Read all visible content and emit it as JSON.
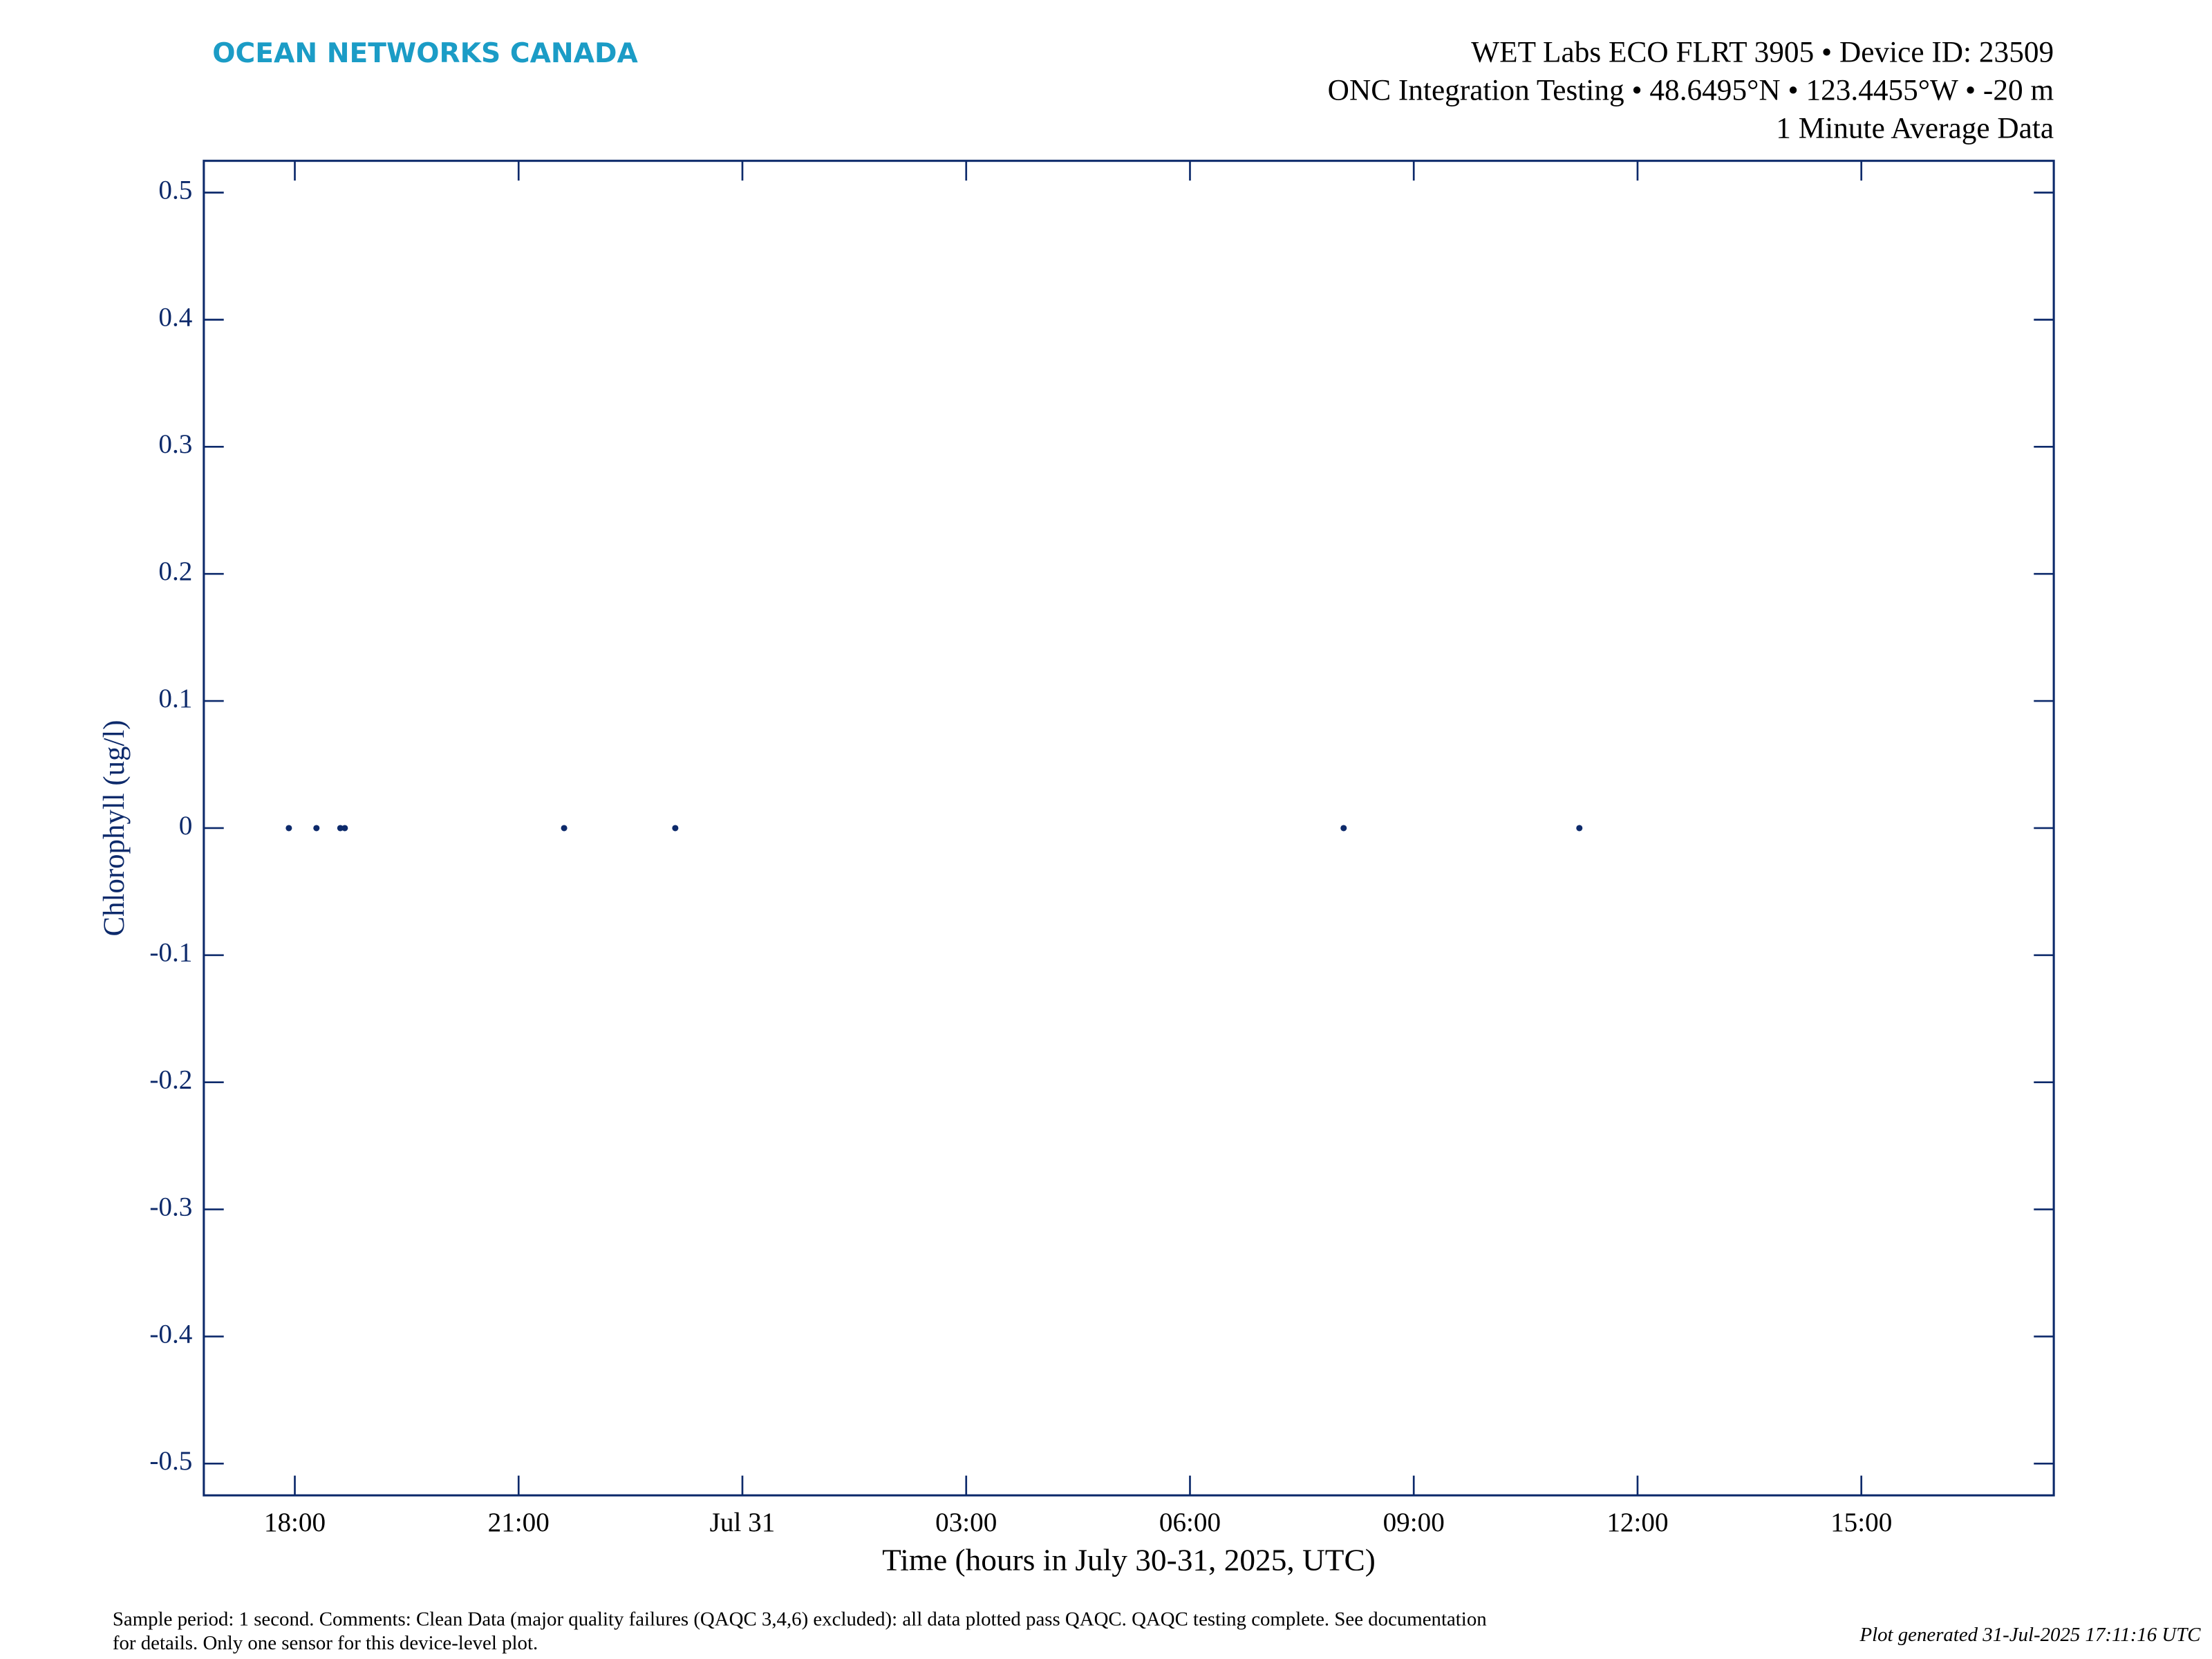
{
  "chart_data": {
    "type": "scatter",
    "logo": "OCEAN NETWORKS CANADA",
    "title": [
      "WET Labs ECO FLRT 3905 • Device ID: 23509",
      "ONC Integration Testing • 48.6495°N • 123.4455°W • -20 m",
      "1 Minute Average Data"
    ],
    "x_label": "Time (hours in July 30-31, 2025, UTC)",
    "y_label": "Chlorophyll (ug/l)",
    "x": [
      17.92,
      18.29,
      18.61,
      18.67,
      21.61,
      23.1,
      32.06,
      35.22
    ],
    "values": [
      0,
      0,
      0,
      0,
      0,
      0,
      0,
      0
    ],
    "color": "#0d2a6b",
    "xlim": [
      16.78,
      41.58
    ],
    "xticks": [
      {
        "value": 18,
        "label": "18:00"
      },
      {
        "value": 21,
        "label": "21:00"
      },
      {
        "value": 24,
        "label": "Jul 31"
      },
      {
        "value": 27,
        "label": "03:00"
      },
      {
        "value": 30,
        "label": "06:00"
      },
      {
        "value": 33,
        "label": "09:00"
      },
      {
        "value": 36,
        "label": "12:00"
      },
      {
        "value": 39,
        "label": "15:00"
      }
    ],
    "ylim": [
      -0.525,
      0.525
    ],
    "yticks": [
      -0.5,
      -0.4,
      -0.3,
      -0.2,
      -0.1,
      0,
      0.1,
      0.2,
      0.3,
      0.4,
      0.5
    ],
    "grid": false,
    "note": [
      "Sample period: 1 second. Comments: Clean Data (major quality failures (QAQC 3,4,6) excluded): all data plotted pass QAQC. QAQC testing complete. See documentation",
      "for details. Only one sensor for this device-level plot."
    ],
    "generated": "Plot generated 31-Jul-2025 17:11:16 UTC"
  }
}
